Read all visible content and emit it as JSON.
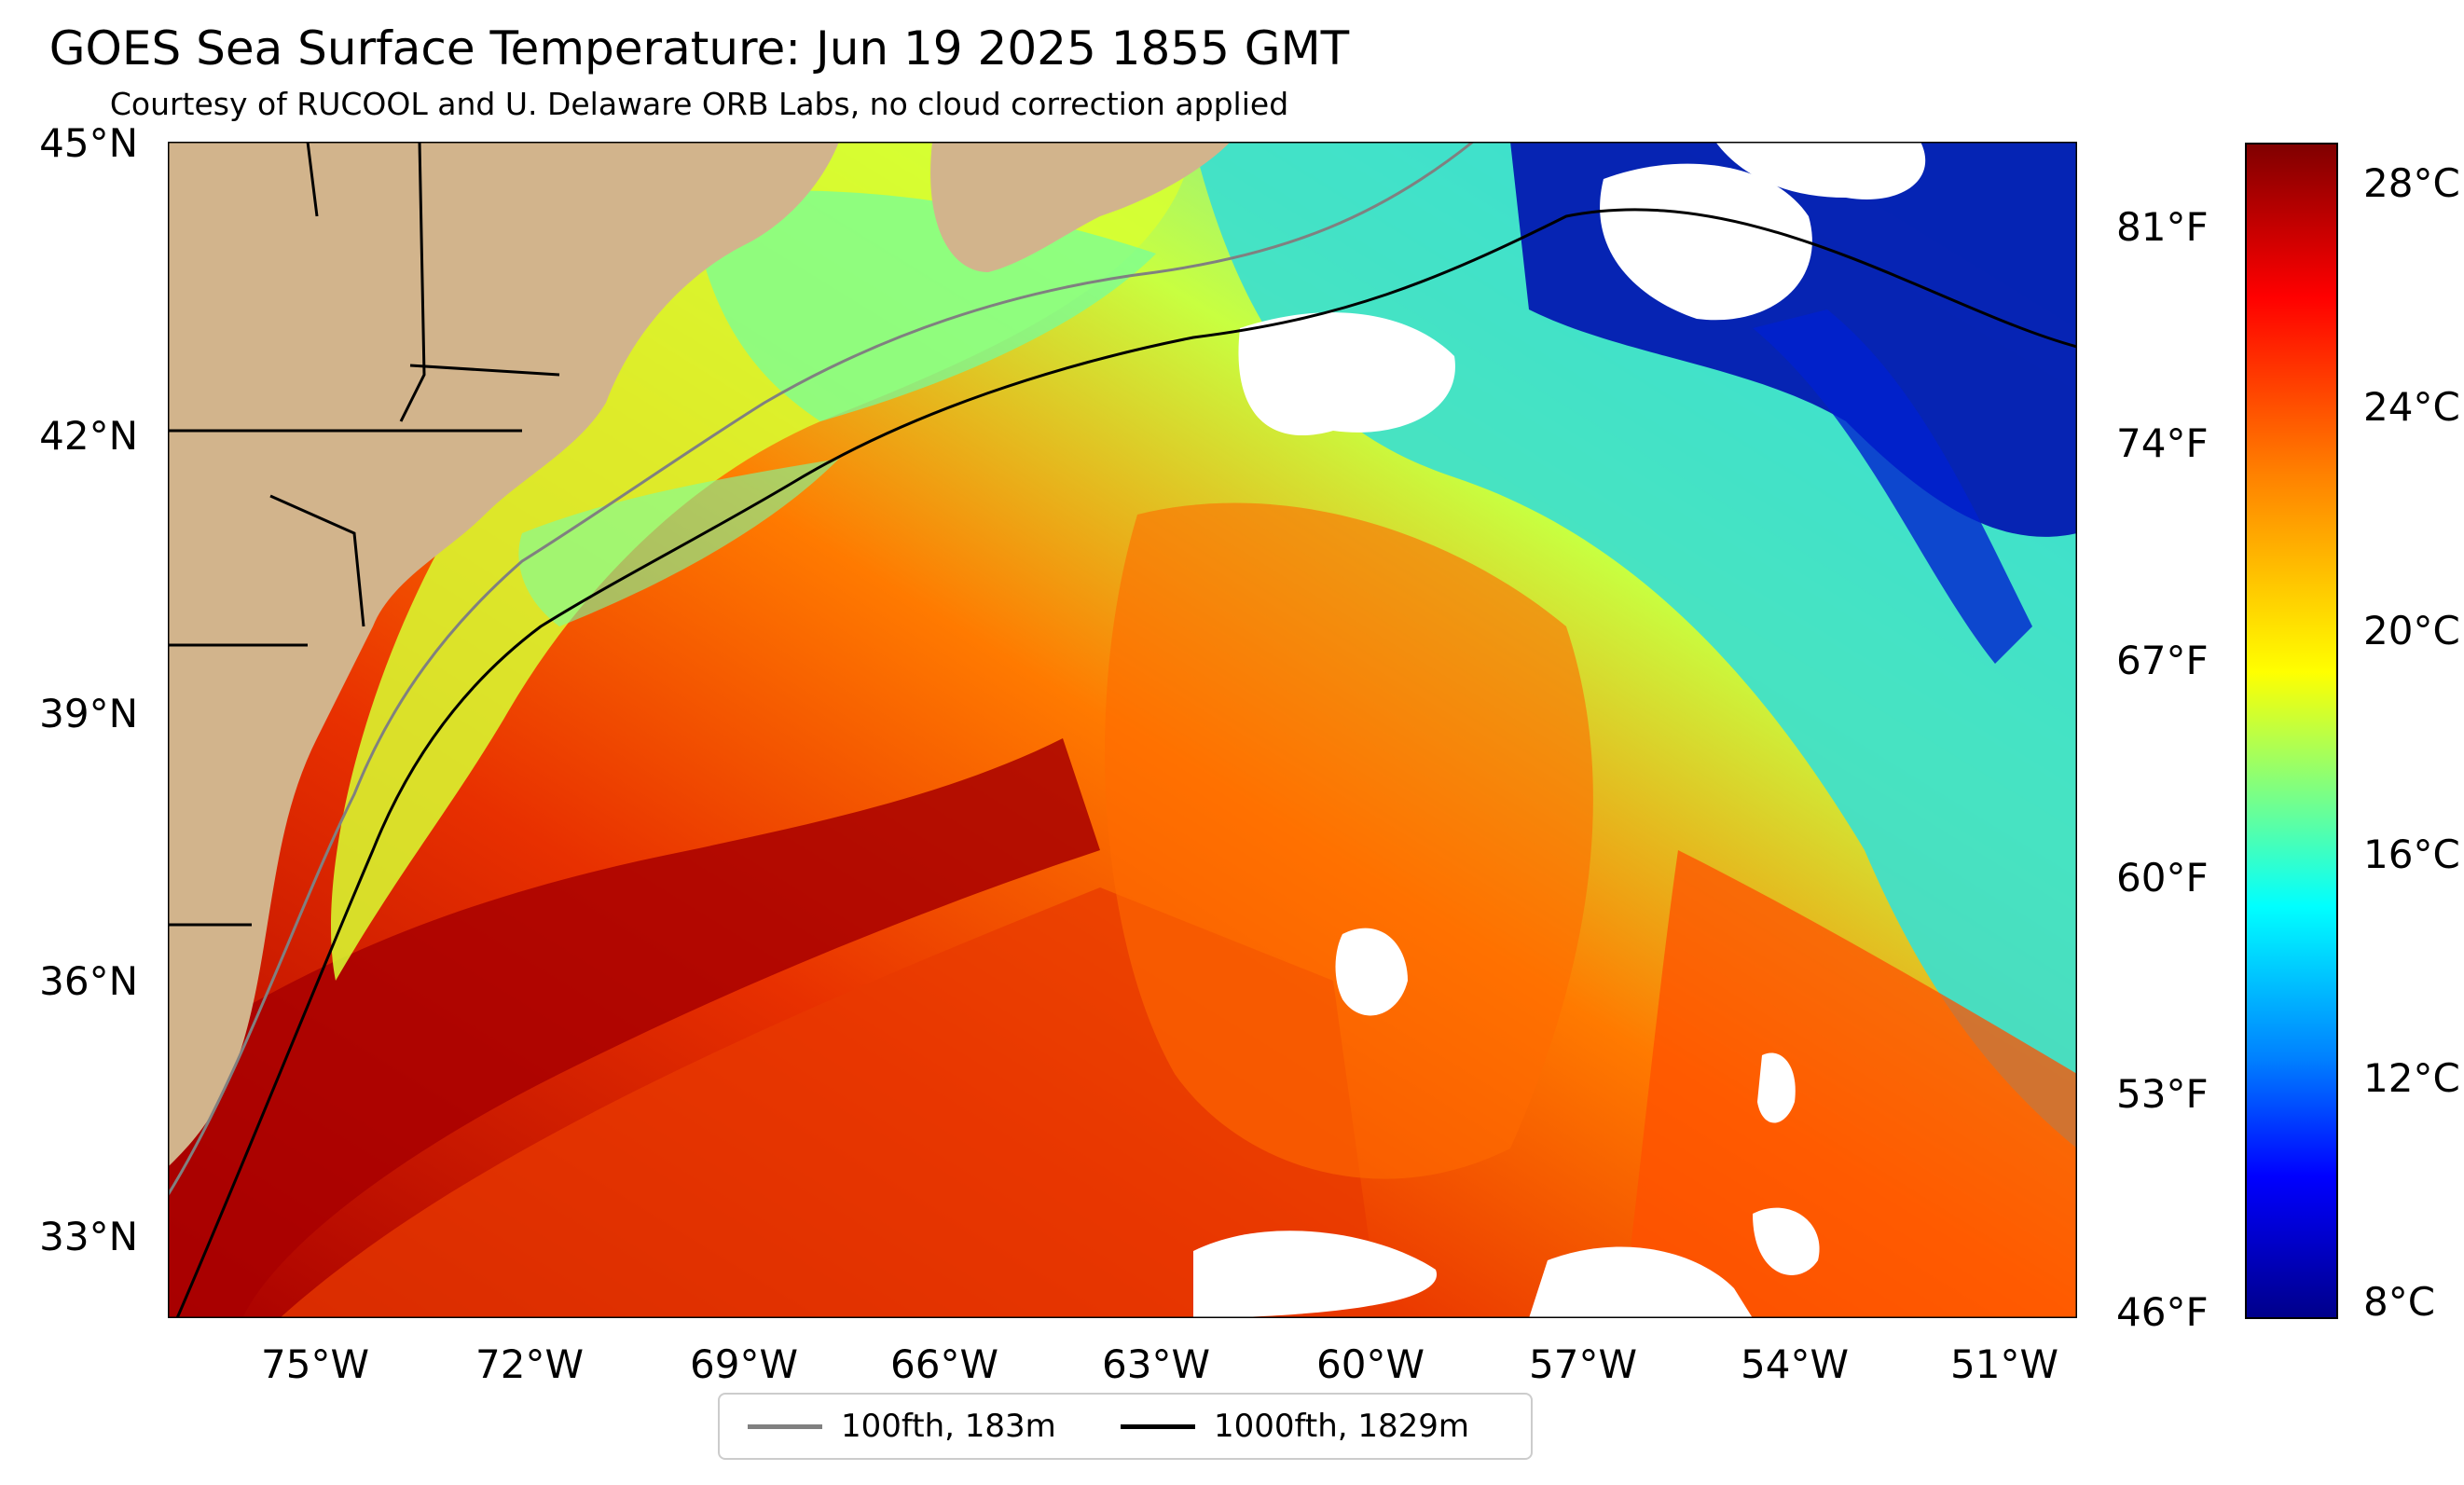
{
  "title": "GOES Sea Surface Temperature: Jun 19 2025 1855 GMT",
  "subtitle": "Courtesy of RUCOOL and U. Delaware ORB Labs, no cloud correction applied",
  "map": {
    "lat_ticks": [
      "45°N",
      "42°N",
      "39°N",
      "36°N",
      "33°N"
    ],
    "lon_ticks": [
      "75°W",
      "72°W",
      "69°W",
      "66°W",
      "63°W",
      "60°W",
      "57°W",
      "54°W",
      "51°W"
    ],
    "fahrenheit_ticks": [
      "81°F",
      "74°F",
      "67°F",
      "60°F",
      "53°F",
      "46°F"
    ],
    "land_color": "#d2b48c",
    "cloud_color": "#ffffff"
  },
  "colorbar": {
    "ticks": [
      "28°C",
      "24°C",
      "20°C",
      "16°C",
      "12°C",
      "8°C"
    ],
    "min_c": 7.5,
    "max_c": 28.5,
    "colormap": "jet"
  },
  "legend": {
    "items": [
      {
        "label": "100fth, 183m",
        "color": "#808080"
      },
      {
        "label": "1000fth, 1829m",
        "color": "#000000"
      }
    ]
  }
}
